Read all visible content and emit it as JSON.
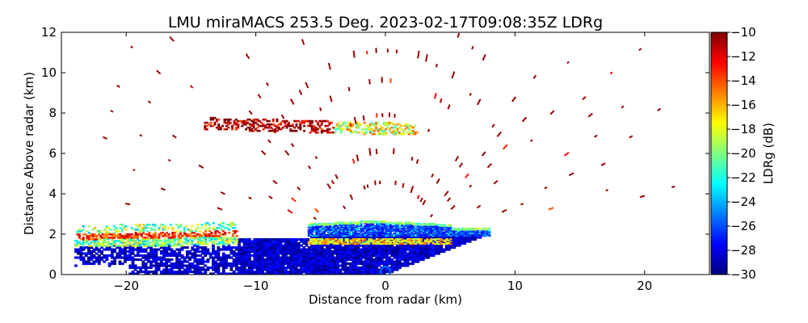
{
  "chart_data": {
    "type": "heatmap",
    "title": "LMU miraMACS 253.5 Deg. 2023-02-17T09:08:35Z  LDRg",
    "xlabel": "Distance from radar (km)",
    "ylabel": "Distance Above radar  (km)",
    "xlim": [
      -25,
      25
    ],
    "ylim": [
      0,
      12
    ],
    "xticks": [
      -20,
      -10,
      0,
      10,
      20
    ],
    "yticks": [
      0,
      2,
      4,
      6,
      8,
      10,
      12
    ],
    "colorbar": {
      "label": "LDRg (dB)",
      "range": [
        -30,
        -10
      ],
      "ticks": [
        -10,
        -12,
        -14,
        -16,
        -18,
        -20,
        -22,
        -24,
        -26,
        -28,
        -30
      ],
      "colormap": "jet"
    },
    "regions": [
      {
        "name": "boundary-layer",
        "x": [
          -24,
          7.5
        ],
        "y": [
          0,
          1.9
        ],
        "value_db": -29
      },
      {
        "name": "low-cloud-top",
        "x": [
          -6,
          8
        ],
        "y": [
          1.9,
          2.7
        ],
        "value_db": -27
      },
      {
        "name": "low-bright-band",
        "x": [
          -6,
          5
        ],
        "y": [
          1.55,
          1.75
        ],
        "value_db": -17
      },
      {
        "name": "far-left-layer",
        "x": [
          -24,
          -12
        ],
        "y": [
          1.6,
          2.6
        ],
        "value_db": -20
      },
      {
        "name": "elevated-layer",
        "x": [
          -14,
          2
        ],
        "y": [
          6.9,
          7.7
        ],
        "value_db": -16
      },
      {
        "name": "scattered-echoes",
        "x": [
          -22,
          23
        ],
        "y": [
          2.5,
          12
        ],
        "value_db": -10
      }
    ]
  },
  "colors": {
    "jet_stops": [
      "#00007f",
      "#0000ff",
      "#007fff",
      "#00ffff",
      "#7fff7f",
      "#ffff00",
      "#ff7f00",
      "#ff0000",
      "#7f0000"
    ]
  }
}
